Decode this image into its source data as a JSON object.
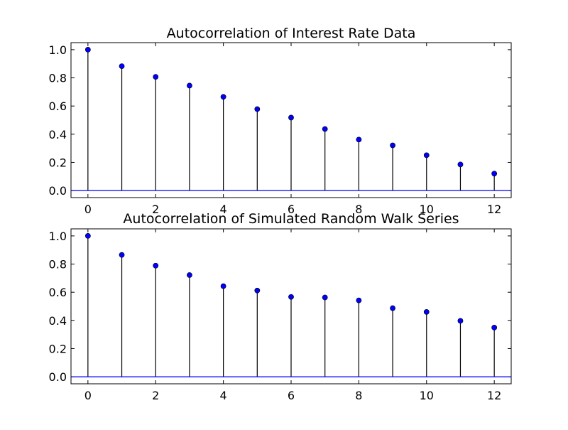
{
  "colors": {
    "background": "#ffffff",
    "stem": "#000000",
    "marker": "#0000ff",
    "baseline": "#0000ff",
    "axes": "#000000"
  },
  "chart_data": [
    {
      "type": "stem",
      "title": "Autocorrelation of Interest Rate Data",
      "xlabel": "",
      "ylabel": "",
      "xlim": [
        -0.5,
        12.5
      ],
      "ylim": [
        -0.05,
        1.05
      ],
      "x": [
        0,
        1,
        2,
        3,
        4,
        5,
        6,
        7,
        8,
        9,
        10,
        11,
        12
      ],
      "values": [
        1.0,
        0.883,
        0.807,
        0.745,
        0.665,
        0.578,
        0.518,
        0.437,
        0.362,
        0.321,
        0.251,
        0.185,
        0.12
      ],
      "xticks": [
        "0",
        "2",
        "4",
        "6",
        "8",
        "10",
        "12"
      ],
      "yticks": [
        "0.0",
        "0.2",
        "0.4",
        "0.6",
        "0.8",
        "1.0"
      ],
      "grid": false
    },
    {
      "type": "stem",
      "title": "Autocorrelation of Simulated Random Walk Series",
      "xlabel": "",
      "ylabel": "",
      "xlim": [
        -0.5,
        12.5
      ],
      "ylim": [
        -0.05,
        1.05
      ],
      "x": [
        0,
        1,
        2,
        3,
        4,
        5,
        6,
        7,
        8,
        9,
        10,
        11,
        12
      ],
      "values": [
        1.0,
        0.865,
        0.789,
        0.722,
        0.643,
        0.612,
        0.567,
        0.563,
        0.542,
        0.487,
        0.46,
        0.397,
        0.349
      ],
      "xticks": [
        "0",
        "2",
        "4",
        "6",
        "8",
        "10",
        "12"
      ],
      "yticks": [
        "0.0",
        "0.2",
        "0.4",
        "0.6",
        "0.8",
        "1.0"
      ],
      "grid": false
    }
  ]
}
